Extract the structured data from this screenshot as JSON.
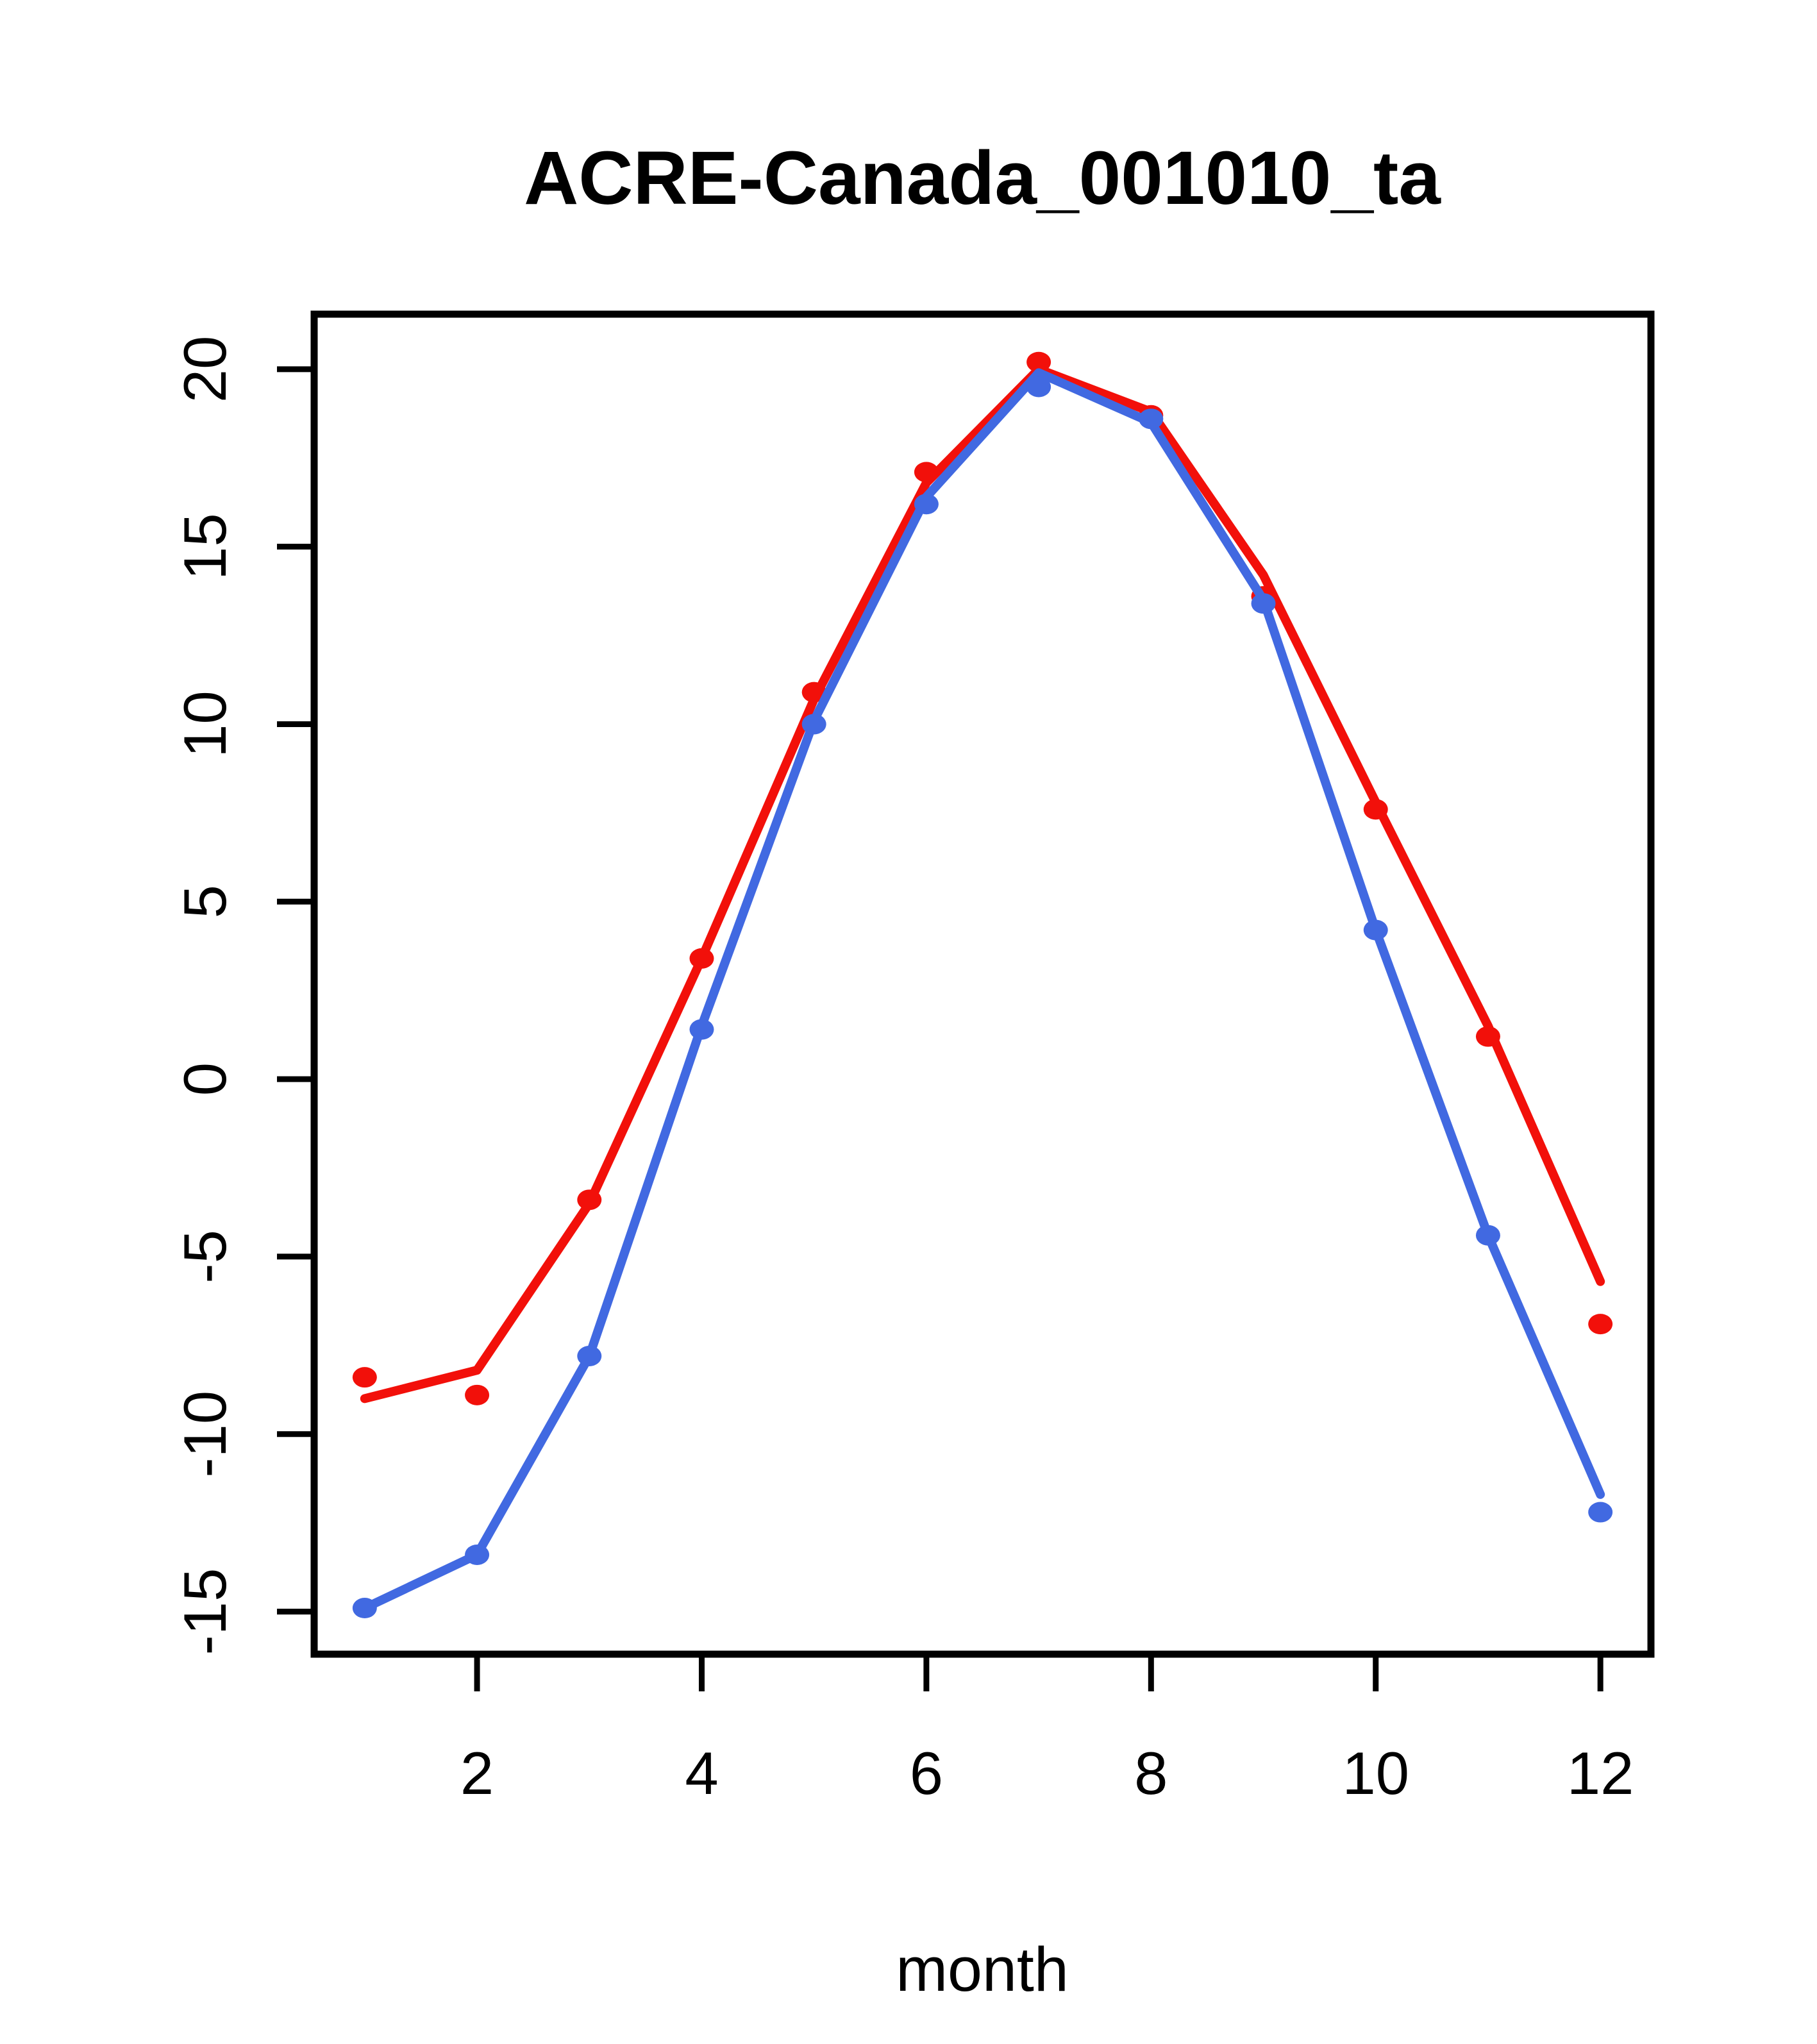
{
  "title": "ACRE-Canada_001010_ta",
  "chart_data": {
    "type": "line",
    "title": "ACRE-Canada_001010_ta",
    "xlabel": "month",
    "ylabel": "",
    "x": [
      1,
      2,
      3,
      4,
      5,
      6,
      7,
      8,
      9,
      10,
      11,
      12
    ],
    "xticks": [
      2,
      4,
      6,
      8,
      10,
      12
    ],
    "yticks": [
      -15,
      -10,
      -5,
      0,
      5,
      10,
      15,
      20
    ],
    "xlim": [
      0.55,
      12.45
    ],
    "ylim": [
      -16.2,
      21.55
    ],
    "grid": false,
    "legend": "none",
    "background": "#ffffff",
    "axis_color": "#000000",
    "series": [
      {
        "name": "red-series",
        "color": "#f2100a",
        "line": [
          -9.0,
          -8.2,
          -3.5,
          3.4,
          10.7,
          16.8,
          20.0,
          18.8,
          14.2,
          7.8,
          1.5,
          -5.7
        ],
        "points": [
          -8.4,
          -8.9,
          -3.4,
          3.4,
          10.9,
          17.1,
          20.2,
          18.7,
          13.6,
          7.6,
          1.2,
          -6.9
        ]
      },
      {
        "name": "blue-series",
        "color": "#4169e1",
        "line": [
          -14.9,
          -13.4,
          -7.8,
          1.5,
          10.1,
          16.4,
          19.9,
          18.5,
          13.5,
          4.2,
          -4.4,
          -11.7
        ],
        "points": [
          -14.9,
          -13.4,
          -7.8,
          1.4,
          10.0,
          16.2,
          19.5,
          18.6,
          13.4,
          4.2,
          -4.4,
          -12.2
        ]
      }
    ]
  }
}
